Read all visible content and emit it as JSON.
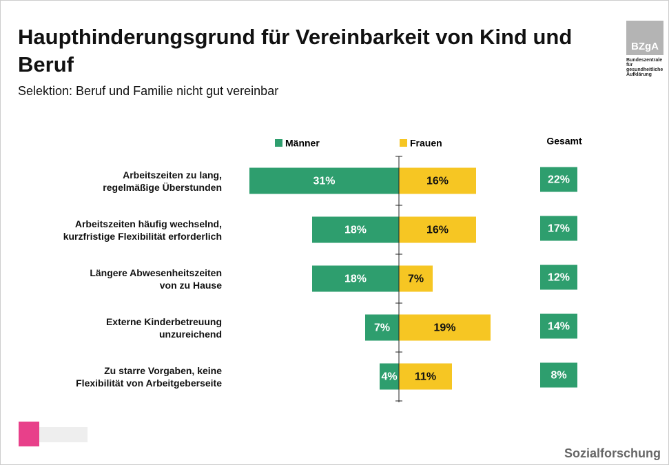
{
  "chart_data": {
    "type": "butterfly",
    "title": "Haupthinderungsgrund für Vereinbarkeit von Kind und Beruf",
    "subtitle": "Selektion: Beruf und Familie nicht gut vereinbar",
    "categories": [
      "Arbeitszeiten zu lang,\nregelmäßige Überstunden",
      "Arbeitszeiten häufig wechselnd,\nkurzfristige Flexibilität erforderlich",
      "Längere Abwesenheitszeiten\nvon zu Hause",
      "Externe Kinderbetreuung\nunzureichend",
      "Zu starre Vorgaben, keine\nFlexibilität von Arbeitgeberseite"
    ],
    "series": [
      {
        "name": "Männer",
        "color": "#2e9e6e",
        "values": [
          31,
          18,
          18,
          7,
          4
        ],
        "value_labels": [
          "31%",
          "18%",
          "18%",
          "7%",
          "4%"
        ]
      },
      {
        "name": "Frauen",
        "color": "#f6c623",
        "values": [
          16,
          16,
          7,
          19,
          11
        ],
        "value_labels": [
          "16%",
          "16%",
          "7%",
          "19%",
          "11%"
        ]
      },
      {
        "name": "Gesamt",
        "color": "#2e9e6e",
        "values": [
          22,
          17,
          12,
          14,
          8
        ],
        "value_labels": [
          "22%",
          "17%",
          "12%",
          "14%",
          "8%"
        ]
      }
    ]
  },
  "logo": {
    "mark": "BZgA",
    "lines": "Bundeszentrale\nfür\ngesundheitliche\nAufklärung"
  },
  "footer": "Sozialforschung"
}
